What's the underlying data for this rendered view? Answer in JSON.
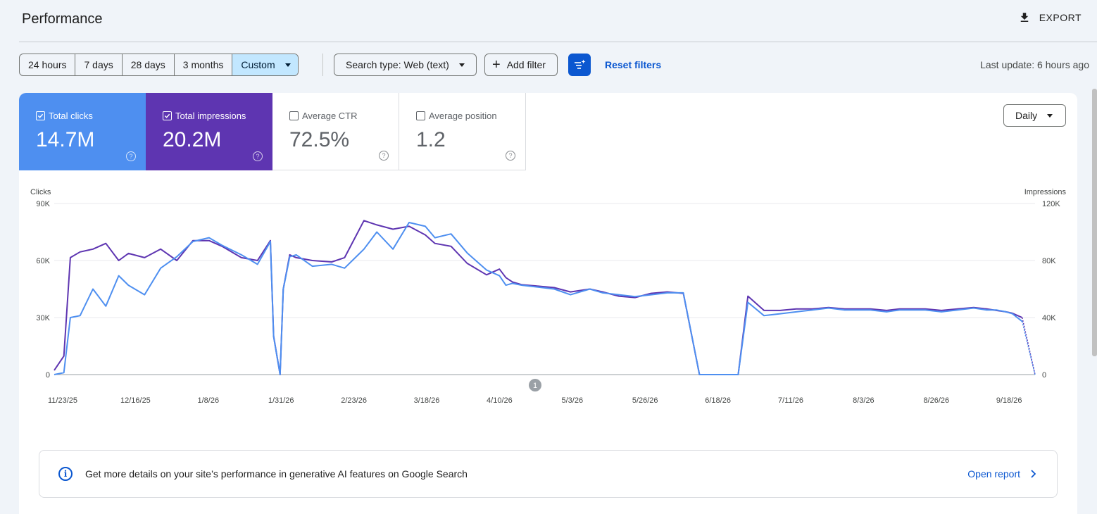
{
  "header": {
    "title": "Performance",
    "export_label": "EXPORT"
  },
  "toolbar": {
    "date_ranges": [
      "24 hours",
      "7 days",
      "28 days",
      "3 months"
    ],
    "custom_label": "Custom",
    "search_type_label": "Search type: Web (text)",
    "add_filter_label": "Add filter",
    "reset_filters_label": "Reset filters",
    "last_update": "Last update: 6 hours ago"
  },
  "metrics": {
    "clicks": {
      "label": "Total clicks",
      "value": "14.7M",
      "checked": true,
      "color": "#4e8ff0"
    },
    "impressions": {
      "label": "Total impressions",
      "value": "20.2M",
      "checked": true,
      "color": "#5e35b1"
    },
    "ctr": {
      "label": "Average CTR",
      "value": "72.5%",
      "checked": false
    },
    "position": {
      "label": "Average position",
      "value": "1.2",
      "checked": false
    }
  },
  "granularity": {
    "label": "Daily"
  },
  "chart_data": {
    "type": "line",
    "left_axis": {
      "label": "Clicks",
      "ticks": [
        "0",
        "30K",
        "60K",
        "90K"
      ],
      "range": [
        0,
        90000
      ]
    },
    "right_axis": {
      "label": "Impressions",
      "ticks": [
        "0",
        "40K",
        "80K",
        "120K"
      ],
      "range": [
        0,
        120000
      ]
    },
    "x_tick_labels": [
      "11/23/25",
      "12/16/25",
      "1/8/26",
      "1/31/26",
      "2/23/26",
      "3/18/26",
      "4/10/26",
      "5/3/26",
      "5/26/26",
      "6/18/26",
      "7/11/26",
      "8/3/26",
      "8/26/26",
      "9/18/26"
    ],
    "annotation_label": "1",
    "grid": true,
    "series": [
      {
        "name": "Total clicks",
        "color": "#4e8ff0",
        "axis": "left",
        "x": [
          0,
          3,
          5,
          8,
          12,
          16,
          20,
          23,
          28,
          33,
          38,
          43,
          48,
          52,
          58,
          63,
          67,
          68,
          70,
          71,
          73,
          75,
          80,
          86,
          90,
          96,
          100,
          105,
          110,
          115,
          118,
          123,
          128,
          134,
          138,
          140,
          142,
          145,
          150,
          155,
          160,
          166,
          170,
          175,
          180,
          185,
          190,
          195,
          200,
          206,
          212,
          215,
          220,
          225,
          230,
          235,
          240,
          245,
          250,
          253,
          258,
          262,
          266,
          270,
          275,
          280,
          285,
          289,
          292,
          295,
          297,
          300,
          304
        ],
        "y": [
          0,
          1000,
          30000,
          31000,
          45000,
          36000,
          52000,
          47000,
          42000,
          56000,
          62000,
          70000,
          72000,
          68000,
          63000,
          58000,
          70000,
          20000,
          0,
          45000,
          62000,
          63000,
          57000,
          58000,
          56000,
          66000,
          75000,
          66000,
          80000,
          78000,
          72000,
          74000,
          64000,
          55000,
          52000,
          47000,
          48000,
          47000,
          46000,
          45000,
          42000,
          45000,
          43000,
          42000,
          41000,
          42000,
          43000,
          43000,
          0,
          0,
          0,
          38000,
          31000,
          32000,
          33000,
          34000,
          35000,
          34000,
          34000,
          34000,
          33000,
          34000,
          34000,
          34000,
          33000,
          34000,
          35000,
          34000,
          34000,
          33000,
          32000,
          28000,
          0
        ]
      },
      {
        "name": "Total impressions",
        "color": "#5e35b1",
        "axis": "right",
        "x": [
          0,
          3,
          5,
          8,
          12,
          16,
          20,
          23,
          28,
          33,
          38,
          43,
          48,
          52,
          58,
          63,
          67,
          68,
          70,
          71,
          73,
          75,
          80,
          86,
          90,
          96,
          100,
          105,
          110,
          115,
          118,
          123,
          128,
          134,
          138,
          140,
          142,
          145,
          150,
          155,
          160,
          166,
          170,
          175,
          180,
          185,
          190,
          195,
          200,
          206,
          212,
          215,
          220,
          225,
          230,
          235,
          240,
          245,
          250,
          253,
          258,
          262,
          266,
          270,
          275,
          280,
          285,
          289,
          292,
          295,
          297,
          300,
          304
        ],
        "y": [
          3000,
          13000,
          82000,
          86000,
          88000,
          92000,
          80000,
          85000,
          82000,
          88000,
          80000,
          94000,
          94000,
          90000,
          82000,
          80000,
          94000,
          27000,
          0,
          60000,
          84000,
          82000,
          80000,
          79000,
          82000,
          108000,
          105000,
          102000,
          104000,
          98000,
          92000,
          90000,
          78000,
          70000,
          74000,
          68000,
          65000,
          63000,
          62000,
          61000,
          58000,
          60000,
          58000,
          55000,
          54000,
          57000,
          58000,
          57000,
          0,
          0,
          0,
          55000,
          45000,
          45000,
          46000,
          46000,
          47000,
          46000,
          46000,
          46000,
          45000,
          46000,
          46000,
          46000,
          45000,
          46000,
          47000,
          46000,
          45000,
          44000,
          43000,
          40000,
          0
        ]
      }
    ]
  },
  "ai_banner": {
    "text": "Get more details on your site’s performance in generative AI features on Google Search",
    "link_label": "Open report"
  }
}
